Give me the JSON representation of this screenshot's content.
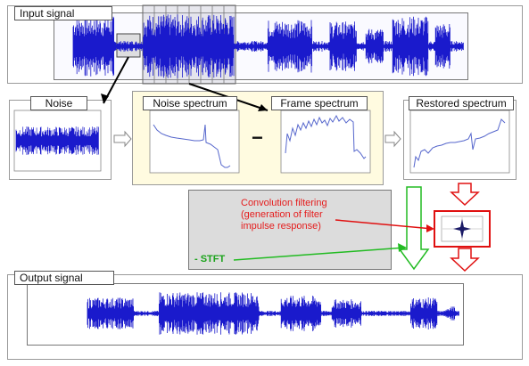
{
  "labels": {
    "input_signal": "Input signal",
    "noise": "Noise",
    "noise_spectrum": "Noise spectrum",
    "frame_spectrum": "Frame spectrum",
    "restored_spectrum": "Restored spectrum",
    "output_signal": "Output signal"
  },
  "operator_minus": "−",
  "convolution_text": "Convolution filtering (generation of filter impulse response)",
  "stft_text": "- STFT",
  "colors": {
    "signal": "#1a1acc",
    "arrow_red": "#e01010",
    "arrow_green": "#22bb22",
    "spectrum_highlight": "#fffbe0"
  },
  "icons": {
    "signal_wave": "waveform-icon",
    "spectrum": "spectrum-plot-icon",
    "filter": "impulse-response-icon"
  }
}
